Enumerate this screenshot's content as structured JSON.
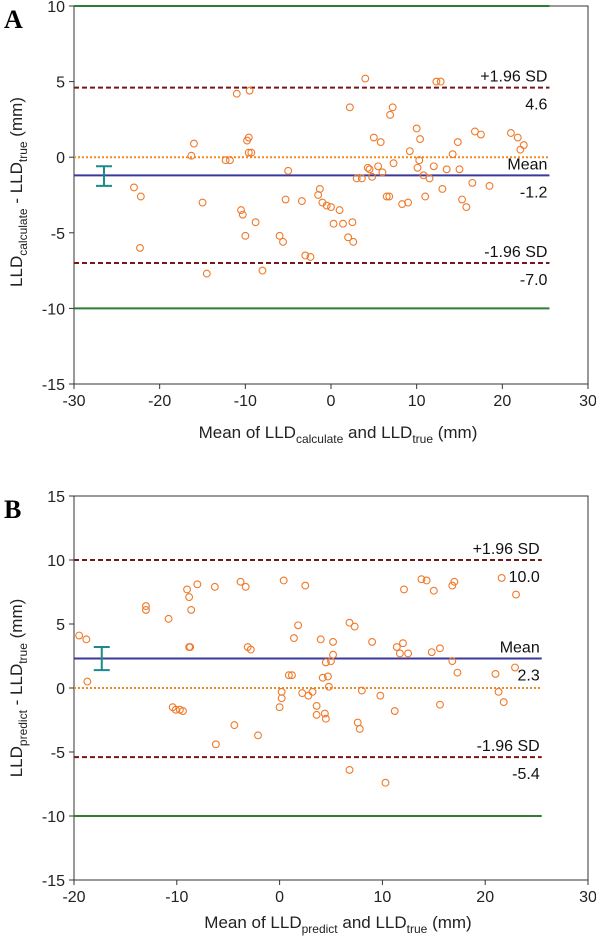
{
  "chart_data": [
    {
      "type": "scatter",
      "panel_label": "A",
      "xlabel": {
        "prefix": "Mean of LLD",
        "sub1": "calculate",
        "mid": " and LLD",
        "sub2": "true",
        "suffix": "  (mm)"
      },
      "ylabel": {
        "a": "LLD",
        "a_sub": "calculate",
        "mid": " - LLD",
        "b_sub": "true",
        "suffix": " (mm)"
      },
      "xlim": [
        -30,
        30
      ],
      "ylim": [
        -15,
        10
      ],
      "xticks": [
        -30,
        -20,
        -10,
        0,
        10,
        20,
        30
      ],
      "yticks": [
        -15,
        -10,
        -5,
        0,
        5,
        10
      ],
      "lines": {
        "limits": [
          10,
          -10
        ],
        "upper_sd": 4.6,
        "lower_sd": -7.0,
        "mean": -1.2,
        "zero": 0,
        "line_x_range": [
          -30,
          25.5
        ]
      },
      "ci_bar": {
        "x": -26.5,
        "low": -1.9,
        "high": -0.6
      },
      "annotations": {
        "upper_label": "+1.96 SD",
        "upper_value": "4.6",
        "mean_label": "Mean",
        "mean_value": "-1.2",
        "lower_label": "-1.96 SD",
        "lower_value": "-7.0"
      },
      "colors": {
        "limit": "#2e7d32",
        "sd": "#7b1416",
        "mean": "#3a3a9a",
        "zero": "#f08a1c",
        "points": "#f07a2a",
        "ci": "#1a8a8a"
      },
      "points": [
        [
          -23,
          -2
        ],
        [
          -22.2,
          -2.6
        ],
        [
          -22.3,
          -6
        ],
        [
          -16.3,
          0.1
        ],
        [
          -16,
          0.9
        ],
        [
          -15,
          -3
        ],
        [
          -14.5,
          -7.7
        ],
        [
          -12.3,
          -0.2
        ],
        [
          -11.8,
          -0.2
        ],
        [
          -11,
          4.2
        ],
        [
          -10.5,
          -3.5
        ],
        [
          -10.3,
          -3.8
        ],
        [
          -10,
          -5.2
        ],
        [
          -9.8,
          1.1
        ],
        [
          -9.6,
          1.3
        ],
        [
          -9.6,
          0.3
        ],
        [
          -9.5,
          4.4
        ],
        [
          -9.3,
          0.3
        ],
        [
          -8.8,
          -4.3
        ],
        [
          -8,
          -7.5
        ],
        [
          -6,
          -5.2
        ],
        [
          -5.6,
          -5.6
        ],
        [
          -5.3,
          -2.8
        ],
        [
          -5,
          -0.9
        ],
        [
          -3.4,
          -2.9
        ],
        [
          -3,
          -6.5
        ],
        [
          -2.4,
          -6.6
        ],
        [
          -1.5,
          -2.5
        ],
        [
          -1.3,
          -2.1
        ],
        [
          -1,
          -3
        ],
        [
          -0.5,
          -3.2
        ],
        [
          0,
          -3.3
        ],
        [
          0.3,
          -4.4
        ],
        [
          1,
          -3.5
        ],
        [
          1.4,
          -4.4
        ],
        [
          2,
          -5.3
        ],
        [
          2.2,
          3.3
        ],
        [
          2.5,
          -4.3
        ],
        [
          2.6,
          -5.6
        ],
        [
          3,
          -1.4
        ],
        [
          3.6,
          -1.4
        ],
        [
          4,
          5.2
        ],
        [
          4.3,
          -0.7
        ],
        [
          4.5,
          -0.8
        ],
        [
          4.8,
          -1.3
        ],
        [
          5,
          1.3
        ],
        [
          5.5,
          -0.6
        ],
        [
          5.8,
          1
        ],
        [
          6,
          -1
        ],
        [
          6.5,
          -2.6
        ],
        [
          6.8,
          -2.6
        ],
        [
          6.9,
          2.8
        ],
        [
          7.2,
          3.3
        ],
        [
          7.3,
          -0.4
        ],
        [
          8.3,
          -3.1
        ],
        [
          9,
          -3
        ],
        [
          9.2,
          0.4
        ],
        [
          10,
          1.9
        ],
        [
          10.1,
          -0.7
        ],
        [
          10.3,
          -0.2
        ],
        [
          10.4,
          1.2
        ],
        [
          10.8,
          -1.2
        ],
        [
          11,
          -2.6
        ],
        [
          11.5,
          -1.4
        ],
        [
          12,
          -0.6
        ],
        [
          12.3,
          5
        ],
        [
          12.8,
          5
        ],
        [
          13,
          -2.1
        ],
        [
          13.5,
          -0.8
        ],
        [
          14.2,
          0.2
        ],
        [
          14.8,
          1
        ],
        [
          15,
          -0.8
        ],
        [
          15.3,
          -2.8
        ],
        [
          15.8,
          -3.3
        ],
        [
          16.5,
          -1.7
        ],
        [
          16.8,
          1.7
        ],
        [
          17.5,
          1.5
        ],
        [
          18.5,
          -1.9
        ],
        [
          21,
          1.6
        ],
        [
          21.8,
          1.3
        ],
        [
          22.1,
          0.5
        ],
        [
          22.5,
          0.8
        ]
      ]
    },
    {
      "type": "scatter",
      "panel_label": "B",
      "xlabel": {
        "prefix": "Mean of LLD",
        "sub1": "predict",
        "mid": " and LLD",
        "sub2": "true",
        "suffix": "  (mm)"
      },
      "ylabel": {
        "a": "LLD",
        "a_sub": "predict",
        "mid": " - LLD",
        "b_sub": "true",
        "suffix": " (mm)"
      },
      "xlim": [
        -20,
        30
      ],
      "ylim": [
        -15,
        15
      ],
      "xticks": [
        -20,
        -10,
        0,
        10,
        20,
        30
      ],
      "yticks": [
        -15,
        -10,
        -5,
        0,
        5,
        10,
        15
      ],
      "lines": {
        "limits": [
          -10
        ],
        "upper_sd": 10.0,
        "lower_sd": -5.4,
        "mean": 2.3,
        "zero": 0,
        "line_x_range": [
          -20,
          25.5
        ]
      },
      "ci_bar": {
        "x": -17.3,
        "low": 1.4,
        "high": 3.2
      },
      "annotations": {
        "upper_label": "+1.96 SD",
        "upper_value": "10.0",
        "mean_label": "Mean",
        "mean_value": "2.3",
        "lower_label": "-1.96 SD",
        "lower_value": "-5.4"
      },
      "colors": {
        "limit": "#2e7d32",
        "sd": "#7b1416",
        "mean": "#3a3a9a",
        "zero": "#f08a1c",
        "points": "#f07a2a",
        "ci": "#1a8a8a"
      },
      "points": [
        [
          -19.5,
          4.1
        ],
        [
          -18.8,
          3.8
        ],
        [
          -18.7,
          0.5
        ],
        [
          -13,
          6.4
        ],
        [
          -13,
          6.1
        ],
        [
          -10.8,
          5.4
        ],
        [
          -10.4,
          -1.5
        ],
        [
          -10.1,
          -1.7
        ],
        [
          -9.7,
          -1.7
        ],
        [
          -9.4,
          -1.8
        ],
        [
          -9,
          7.7
        ],
        [
          -8.8,
          7.1
        ],
        [
          -8.8,
          3.2
        ],
        [
          -8.7,
          3.2
        ],
        [
          -8.6,
          6.1
        ],
        [
          -8,
          8.1
        ],
        [
          -6.3,
          7.9
        ],
        [
          -6.2,
          -4.4
        ],
        [
          -4.4,
          -2.9
        ],
        [
          -3.8,
          8.3
        ],
        [
          -3.3,
          7.9
        ],
        [
          -3.1,
          3.2
        ],
        [
          -2.8,
          3
        ],
        [
          -2.1,
          -3.7
        ],
        [
          0,
          -1.5
        ],
        [
          0.2,
          -0.8
        ],
        [
          0.2,
          -0.3
        ],
        [
          0.4,
          8.4
        ],
        [
          0.9,
          1
        ],
        [
          1.2,
          1
        ],
        [
          1.4,
          3.9
        ],
        [
          1.8,
          4.9
        ],
        [
          2.2,
          -0.4
        ],
        [
          2.5,
          8
        ],
        [
          2.8,
          -0.6
        ],
        [
          3.2,
          -0.3
        ],
        [
          3.6,
          -1.4
        ],
        [
          3.6,
          -2.1
        ],
        [
          4,
          3.8
        ],
        [
          4.2,
          0.8
        ],
        [
          4.4,
          -2
        ],
        [
          4.5,
          -2.4
        ],
        [
          4.5,
          2
        ],
        [
          4.7,
          0.9
        ],
        [
          4.8,
          0.1
        ],
        [
          5,
          2.1
        ],
        [
          5.2,
          3.6
        ],
        [
          5.2,
          2.6
        ],
        [
          6.8,
          -6.4
        ],
        [
          6.8,
          5.1
        ],
        [
          7.3,
          4.8
        ],
        [
          7.6,
          -2.7
        ],
        [
          7.8,
          -3.2
        ],
        [
          8,
          -0.2
        ],
        [
          9,
          3.6
        ],
        [
          9.8,
          -0.6
        ],
        [
          10.3,
          -7.4
        ],
        [
          11.2,
          -1.8
        ],
        [
          11.4,
          3.2
        ],
        [
          11.7,
          2.7
        ],
        [
          12,
          3.5
        ],
        [
          12.1,
          7.7
        ],
        [
          12.5,
          2.7
        ],
        [
          13.8,
          8.5
        ],
        [
          14.3,
          8.4
        ],
        [
          14.8,
          2.8
        ],
        [
          15,
          7.6
        ],
        [
          15.6,
          3.1
        ],
        [
          15.6,
          -1.3
        ],
        [
          16.8,
          8
        ],
        [
          16.8,
          2.1
        ],
        [
          17,
          8.3
        ],
        [
          17.3,
          1.2
        ],
        [
          21,
          1.1
        ],
        [
          21.3,
          -0.3
        ],
        [
          21.6,
          8.6
        ],
        [
          21.8,
          -1.1
        ],
        [
          23,
          7.3
        ],
        [
          22.9,
          1.6
        ]
      ]
    }
  ]
}
